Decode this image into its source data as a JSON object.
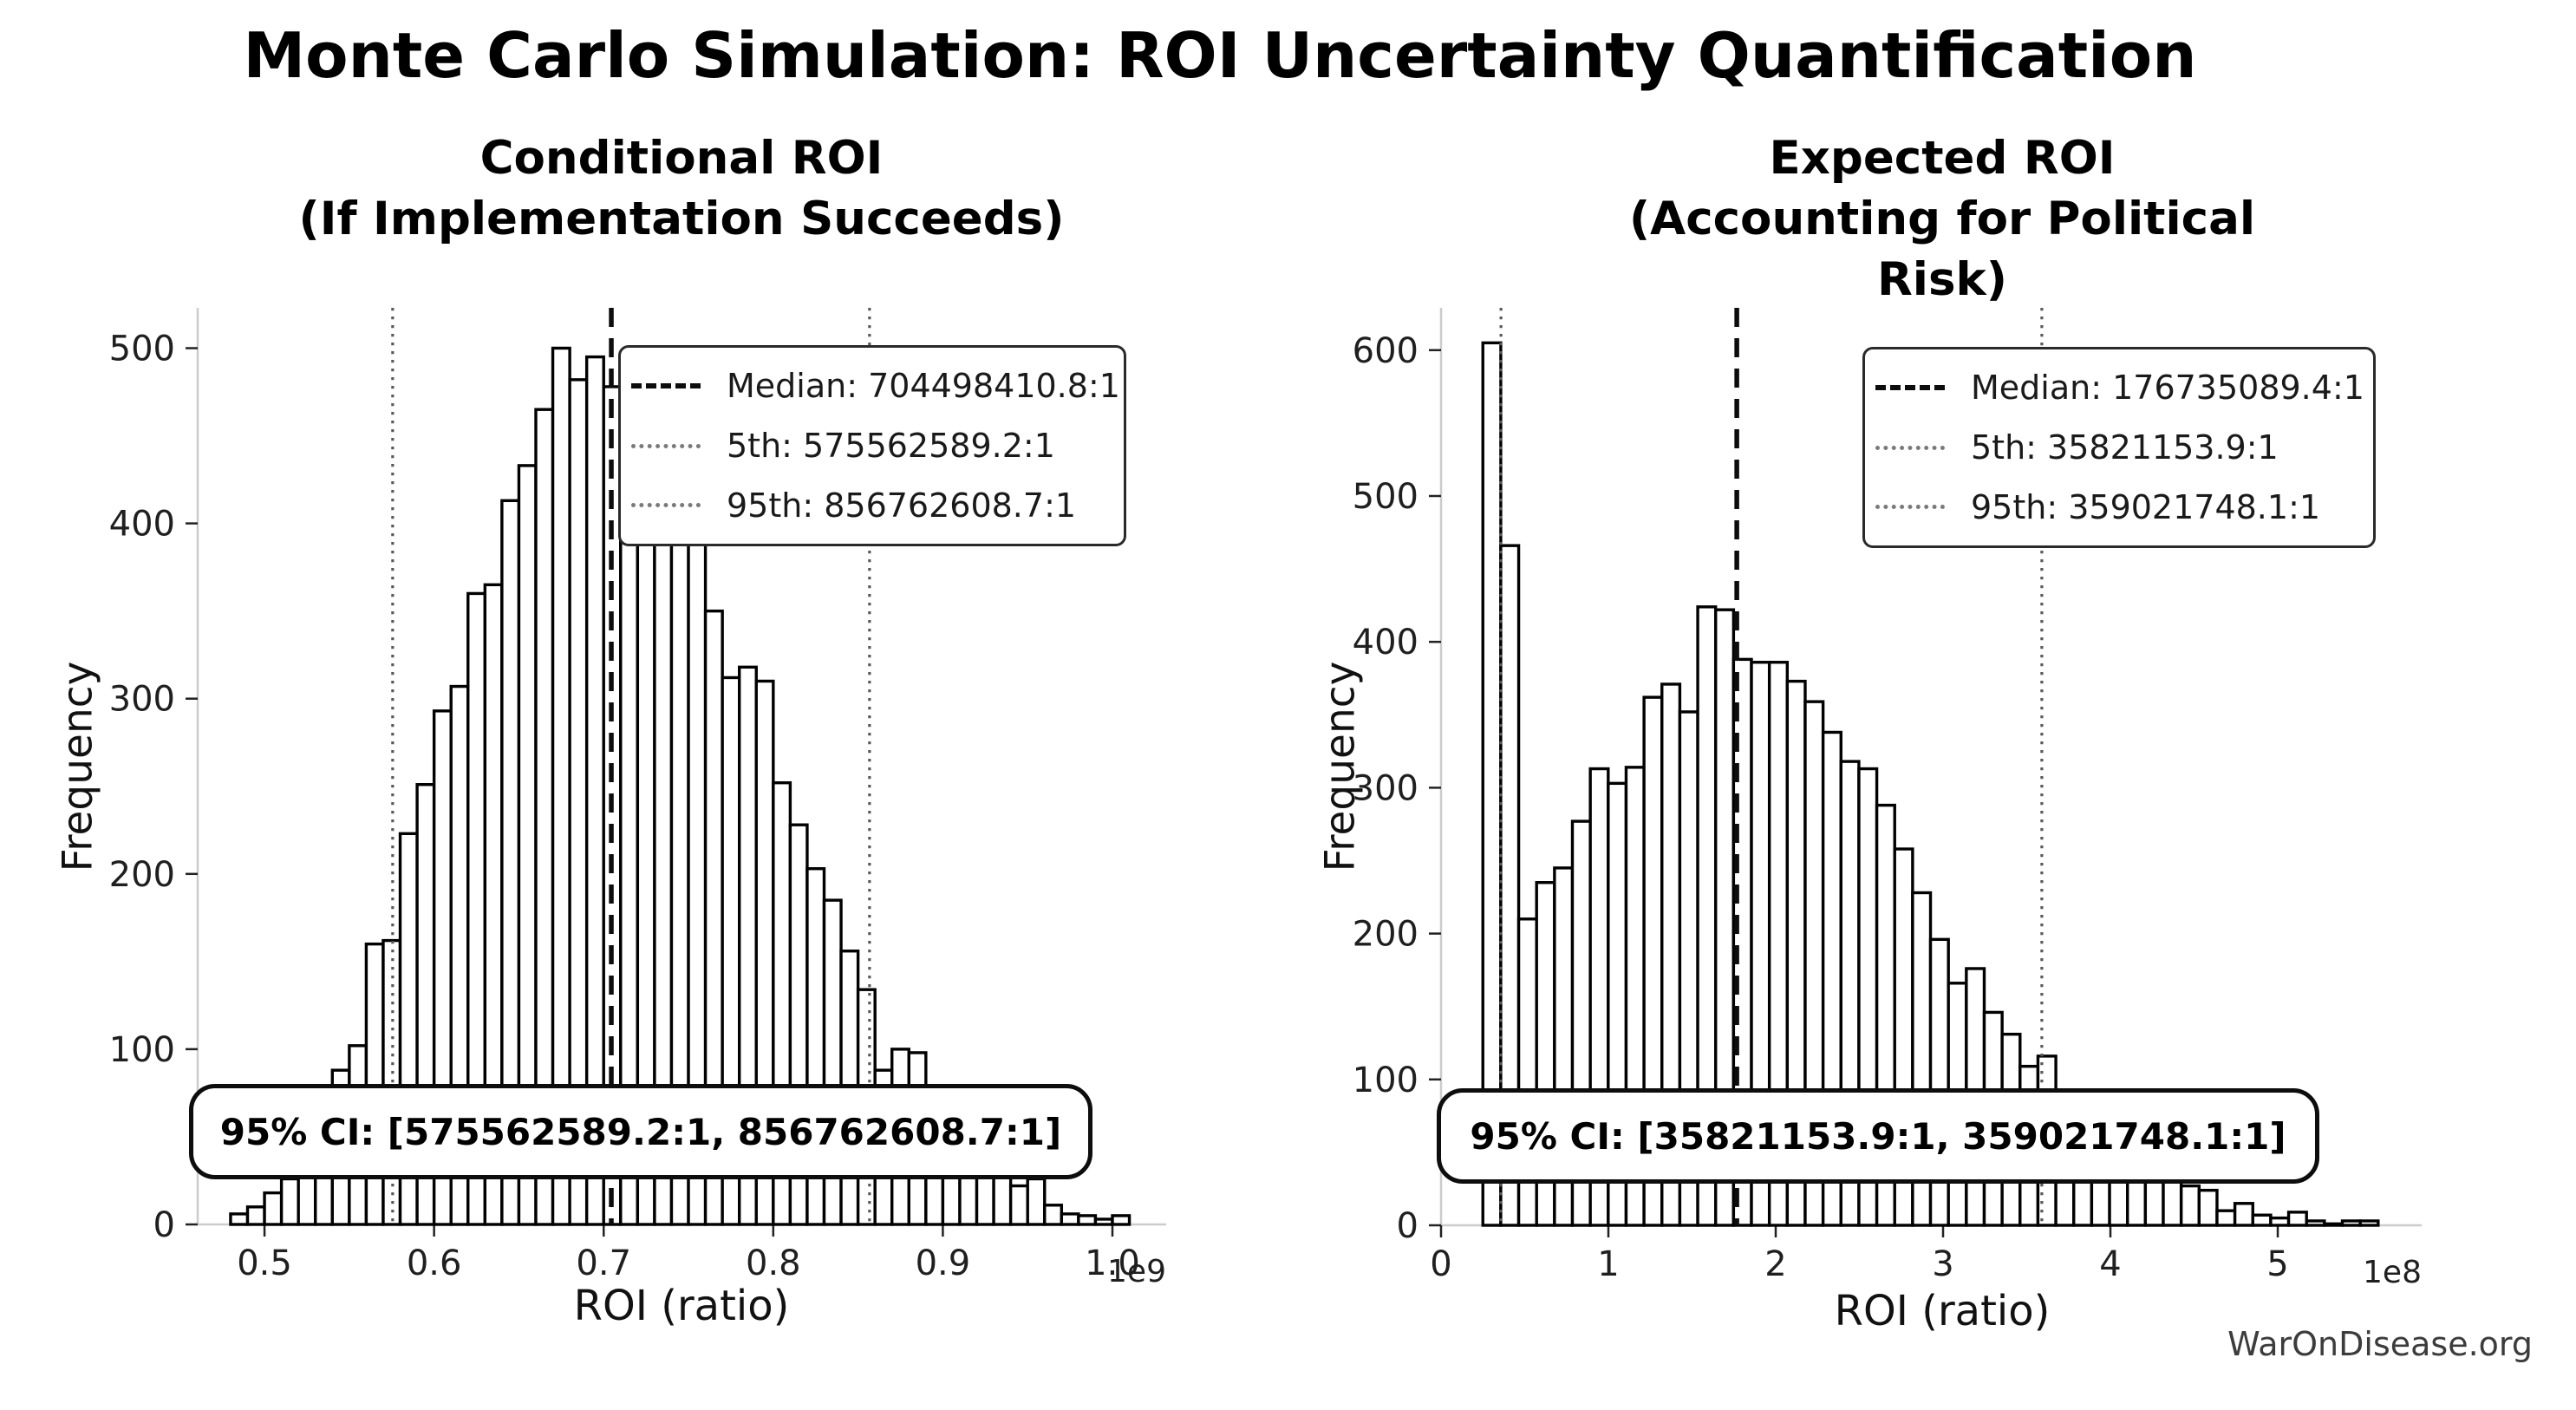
{
  "figure": {
    "title": "Monte Carlo Simulation: ROI Uncertainty Quantification",
    "watermark": "WarOnDisease.org"
  },
  "chart_data": [
    {
      "type": "bar",
      "subtype": "histogram",
      "title": "Conditional ROI\n(If Implementation Succeeds)",
      "xlabel": "ROI (ratio)",
      "ylabel": "Frequency",
      "axis_offset_label": "1e9",
      "grid": false,
      "xlim": [
        0.4606,
        1.0317
      ],
      "ylim": [
        0,
        523
      ],
      "x_ticks": [
        {
          "v": 0.5,
          "label": "0.5"
        },
        {
          "v": 0.6,
          "label": "0.6"
        },
        {
          "v": 0.7,
          "label": "0.7"
        },
        {
          "v": 0.8,
          "label": "0.8"
        },
        {
          "v": 0.9,
          "label": "0.9"
        },
        {
          "v": 1.0,
          "label": "1.0"
        }
      ],
      "y_ticks": [
        {
          "v": 0,
          "label": "0"
        },
        {
          "v": 100,
          "label": "100"
        },
        {
          "v": 200,
          "label": "200"
        },
        {
          "v": 300,
          "label": "300"
        },
        {
          "v": 400,
          "label": "400"
        },
        {
          "v": 500,
          "label": "500"
        }
      ],
      "bins": {
        "start": 0.48,
        "width": 0.01,
        "unit_exponent": "1e9"
      },
      "values": [
        6,
        10,
        18,
        26,
        34,
        60,
        88,
        102,
        160,
        162,
        223,
        251,
        293,
        307,
        360,
        365,
        413,
        433,
        465,
        500,
        482,
        495,
        478,
        455,
        440,
        455,
        415,
        395,
        350,
        312,
        318,
        310,
        252,
        228,
        203,
        185,
        156,
        134,
        88,
        100,
        98,
        40,
        35,
        45,
        38,
        33,
        22,
        26,
        11,
        6,
        5,
        3,
        5
      ],
      "lines": [
        {
          "name": "median",
          "style": "dashed",
          "color": "#0d0d0d",
          "value": 0.7044984108,
          "label": "Median: 704498410.8:1"
        },
        {
          "name": "p5",
          "style": "dotted",
          "color": "#595959",
          "value": 0.5755625892,
          "label": "5th: 575562589.2:1"
        },
        {
          "name": "p95",
          "style": "dotted",
          "color": "#595959",
          "value": 0.8567626087,
          "label": "95th: 856762608.7:1"
        }
      ],
      "ci_label": "95% CI: [575562589.2:1, 856762608.7:1]"
    },
    {
      "type": "bar",
      "subtype": "histogram",
      "title": "Expected ROI\n(Accounting for Political Risk)",
      "xlabel": "ROI (ratio)",
      "ylabel": "Frequency",
      "axis_offset_label": "1e8",
      "grid": false,
      "xlim": [
        0.0,
        5.86
      ],
      "ylim": [
        0,
        629
      ],
      "x_ticks": [
        {
          "v": 0,
          "label": "0"
        },
        {
          "v": 1,
          "label": "1"
        },
        {
          "v": 2,
          "label": "2"
        },
        {
          "v": 3,
          "label": "3"
        },
        {
          "v": 4,
          "label": "4"
        },
        {
          "v": 5,
          "label": "5"
        }
      ],
      "y_ticks": [
        {
          "v": 0,
          "label": "0"
        },
        {
          "v": 100,
          "label": "100"
        },
        {
          "v": 200,
          "label": "200"
        },
        {
          "v": 300,
          "label": "300"
        },
        {
          "v": 400,
          "label": "400"
        },
        {
          "v": 500,
          "label": "500"
        },
        {
          "v": 600,
          "label": "600"
        }
      ],
      "bins": {
        "start": 0.25,
        "width": 0.107,
        "unit_exponent": "1e8"
      },
      "values": [
        605,
        466,
        210,
        235,
        245,
        277,
        313,
        303,
        314,
        362,
        371,
        352,
        424,
        422,
        388,
        386,
        386,
        373,
        359,
        338,
        318,
        313,
        288,
        258,
        228,
        196,
        166,
        176,
        146,
        131,
        109,
        116,
        65,
        60,
        55,
        50,
        48,
        45,
        40,
        27,
        24,
        10,
        15,
        7,
        5,
        9,
        3,
        1,
        3,
        3
      ],
      "lines": [
        {
          "name": "median",
          "style": "dashed",
          "color": "#0d0d0d",
          "value": 1.767350894,
          "label": "Median: 176735089.4:1"
        },
        {
          "name": "p5",
          "style": "dotted",
          "color": "#595959",
          "value": 0.358211539,
          "label": "5th: 35821153.9:1"
        },
        {
          "name": "p95",
          "style": "dotted",
          "color": "#595959",
          "value": 3.590217481,
          "label": "95th: 359021748.1:1"
        }
      ],
      "ci_label": "95% CI: [35821153.9:1, 359021748.1:1]"
    }
  ],
  "colors": {
    "bar_fill": "#ffffff",
    "bar_edge": "#000000",
    "spine": "#cccccc",
    "tick": "#222222",
    "tick_label": "#1f1f1f",
    "watermark": "#3c3c3c"
  }
}
